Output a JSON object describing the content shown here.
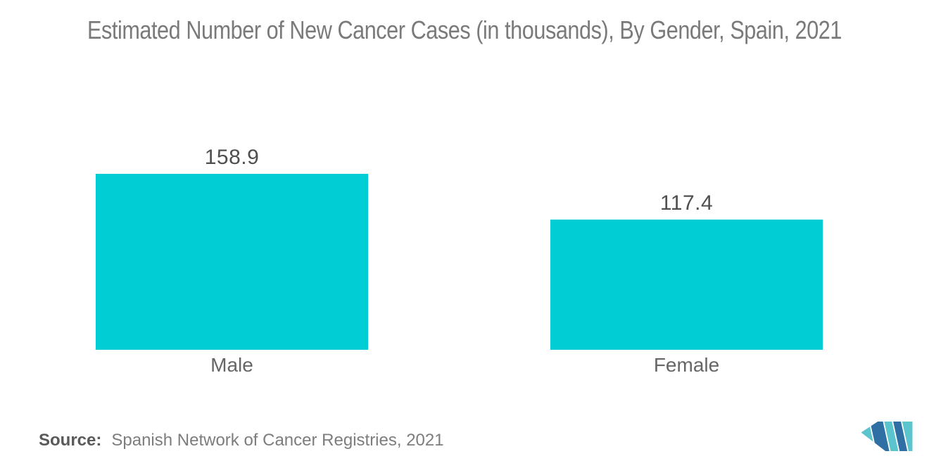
{
  "title": "Estimated Number of New Cancer Cases (in thousands), By Gender, Spain, 2021",
  "source": {
    "label": "Source:",
    "text": "Spanish Network of Cancer Registries, 2021"
  },
  "logo": {
    "name": "mordor-intelligence-logo",
    "teal": "#5BC4CD",
    "blue": "#2F6FA4"
  },
  "colors": {
    "bar": "#00CDD4",
    "title_text": "#7a7a7a",
    "value_text": "#4f4f4f",
    "category_text": "#666666"
  },
  "chart_data": {
    "type": "bar",
    "title": "Estimated Number of New Cancer Cases (in thousands), By Gender, Spain, 2021",
    "categories": [
      "Male",
      "Female"
    ],
    "values": [
      158.9,
      117.4
    ],
    "xlabel": "",
    "ylabel": "",
    "ylim": [
      0,
      170
    ],
    "grid": false,
    "legend": false,
    "data_labels": true,
    "bar_color": "#00CDD4",
    "orientation": "vertical"
  }
}
